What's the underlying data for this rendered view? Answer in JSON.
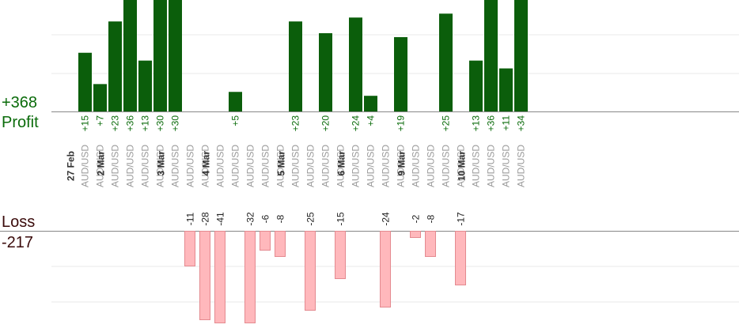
{
  "summary": {
    "profit_total": "+368",
    "profit_label": "Profit",
    "loss_label": "Loss",
    "loss_total": "-217"
  },
  "colors": {
    "profit_bar": "#0b5e0b",
    "loss_bar": "#ffb8bc",
    "loss_bar_border": "#e48a90",
    "profit_text": "#0a6b0a",
    "loss_text": "#3a0a0a",
    "pair_text": "#9a9a9a",
    "date_text": "#333333",
    "baseline": "#888888",
    "grid": "#e8e8e8"
  },
  "chart_data": {
    "type": "bar",
    "title": "",
    "grid": true,
    "profit_axis_range": [
      0,
      40
    ],
    "loss_axis_range": [
      -30,
      0
    ],
    "categories": [
      {
        "date": "27 Feb",
        "pair": "AUD/USD",
        "value": 15
      },
      {
        "date": "",
        "pair": "AUD/USD",
        "value": 7
      },
      {
        "date": "2 Mar",
        "pair": "AUD/USD",
        "value": 23
      },
      {
        "date": "",
        "pair": "AUD/USD",
        "value": 36
      },
      {
        "date": "",
        "pair": "AUD/USD",
        "value": 13
      },
      {
        "date": "",
        "pair": "AUD/USD",
        "value": 30
      },
      {
        "date": "3 Mar",
        "pair": "AUD/USD",
        "value": 30
      },
      {
        "date": "",
        "pair": "AUD/USD",
        "value": -11
      },
      {
        "date": "",
        "pair": "AUD/USD",
        "value": -28
      },
      {
        "date": "4 Mar",
        "pair": "AUD/USD",
        "value": -41
      },
      {
        "date": "",
        "pair": "AUD/USD",
        "value": 5
      },
      {
        "date": "",
        "pair": "AUD/USD",
        "value": -32
      },
      {
        "date": "",
        "pair": "AUD/USD",
        "value": -6
      },
      {
        "date": "",
        "pair": "AUD/USD",
        "value": -8
      },
      {
        "date": "5 Mar",
        "pair": "AUD/USD",
        "value": 23
      },
      {
        "date": "",
        "pair": "AUD/USD",
        "value": -25
      },
      {
        "date": "",
        "pair": "AUD/USD",
        "value": 20
      },
      {
        "date": "",
        "pair": "AUD/USD",
        "value": -15
      },
      {
        "date": "6 Mar",
        "pair": "AUD/USD",
        "value": 24
      },
      {
        "date": "",
        "pair": "AUD/USD",
        "value": 4
      },
      {
        "date": "",
        "pair": "AUD/USD",
        "value": -24
      },
      {
        "date": "",
        "pair": "AUD/USD",
        "value": 19
      },
      {
        "date": "9 Mar",
        "pair": "AUD/USD",
        "value": -2
      },
      {
        "date": "",
        "pair": "AUD/USD",
        "value": -8
      },
      {
        "date": "",
        "pair": "AUD/USD",
        "value": 25
      },
      {
        "date": "",
        "pair": "AUD/USD",
        "value": -17
      },
      {
        "date": "10 Mar",
        "pair": "AUD/USD",
        "value": 13
      },
      {
        "date": "",
        "pair": "AUD/USD",
        "value": 36
      },
      {
        "date": "",
        "pair": "AUD/USD",
        "value": 11
      },
      {
        "date": "",
        "pair": "AUD/USD",
        "value": 34
      }
    ]
  }
}
